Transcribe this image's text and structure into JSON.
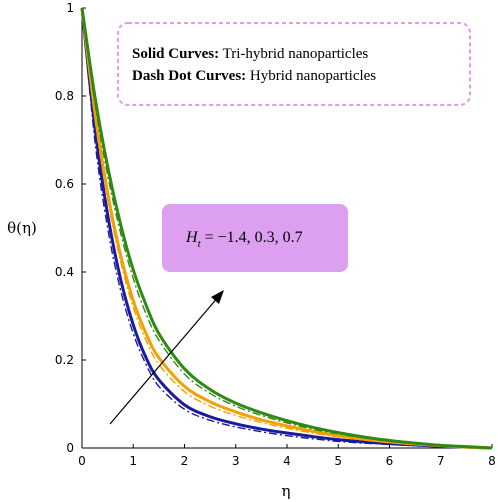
{
  "chart_data": {
    "type": "line",
    "xlabel": "η",
    "ylabel": "θ(η)",
    "xlim": [
      0,
      8
    ],
    "ylim": [
      0,
      1
    ],
    "x_ticks": [
      "0",
      "1",
      "2",
      "3",
      "4",
      "5",
      "6",
      "7",
      "8"
    ],
    "y_ticks": [
      "0",
      "0.2",
      "0.4",
      "0.6",
      "0.8",
      "1"
    ],
    "legend": {
      "placement": "top-right",
      "solid_label": "Solid Curves:",
      "solid_text": " Tri-hybrid nanoparticles",
      "dash_label": "Dash Dot Curves:",
      "dash_text": " Hybrid nanoparticles",
      "border_color": "#e39ae8"
    },
    "annotation": {
      "symbol": "H",
      "subscript": "t",
      "text": " = −1.4, 0.3, 0.7",
      "box_color": "#dda0f0",
      "arrow": "increasing"
    },
    "x": [
      0,
      0.25,
      0.5,
      0.75,
      1,
      1.25,
      1.5,
      2,
      2.5,
      3,
      3.5,
      4,
      4.5,
      5,
      5.5,
      6,
      6.5,
      7,
      7.5,
      8
    ],
    "series": [
      {
        "color": "#1a1a9c",
        "style": "solid",
        "values": [
          1.0,
          0.73,
          0.53,
          0.385,
          0.28,
          0.205,
          0.155,
          0.098,
          0.071,
          0.055,
          0.043,
          0.034,
          0.026,
          0.019,
          0.014,
          0.01,
          0.007,
          0.004,
          0.002,
          0.0
        ]
      },
      {
        "color": "#1a1a9c",
        "style": "dashdot",
        "values": [
          1.0,
          0.7,
          0.5,
          0.36,
          0.26,
          0.19,
          0.14,
          0.088,
          0.063,
          0.048,
          0.037,
          0.028,
          0.021,
          0.015,
          0.011,
          0.008,
          0.005,
          0.003,
          0.0015,
          0.0
        ]
      },
      {
        "color": "#f5a000",
        "style": "solid",
        "values": [
          1.0,
          0.765,
          0.58,
          0.44,
          0.335,
          0.26,
          0.205,
          0.14,
          0.105,
          0.082,
          0.064,
          0.05,
          0.038,
          0.028,
          0.02,
          0.014,
          0.009,
          0.005,
          0.002,
          0.0
        ]
      },
      {
        "color": "#f5a000",
        "style": "dashdot",
        "values": [
          1.0,
          0.75,
          0.565,
          0.425,
          0.32,
          0.245,
          0.19,
          0.128,
          0.095,
          0.074,
          0.058,
          0.045,
          0.034,
          0.025,
          0.018,
          0.012,
          0.008,
          0.004,
          0.0018,
          0.0
        ]
      },
      {
        "color": "#2e8a12",
        "style": "solid",
        "values": [
          1.0,
          0.8,
          0.64,
          0.51,
          0.405,
          0.325,
          0.26,
          0.18,
          0.133,
          0.102,
          0.08,
          0.062,
          0.047,
          0.035,
          0.025,
          0.017,
          0.011,
          0.006,
          0.003,
          0.0
        ]
      },
      {
        "color": "#2e8a12",
        "style": "dashdot",
        "values": [
          1.0,
          0.785,
          0.62,
          0.49,
          0.385,
          0.305,
          0.245,
          0.168,
          0.124,
          0.095,
          0.074,
          0.057,
          0.043,
          0.032,
          0.023,
          0.016,
          0.01,
          0.006,
          0.0025,
          0.0
        ]
      }
    ]
  }
}
